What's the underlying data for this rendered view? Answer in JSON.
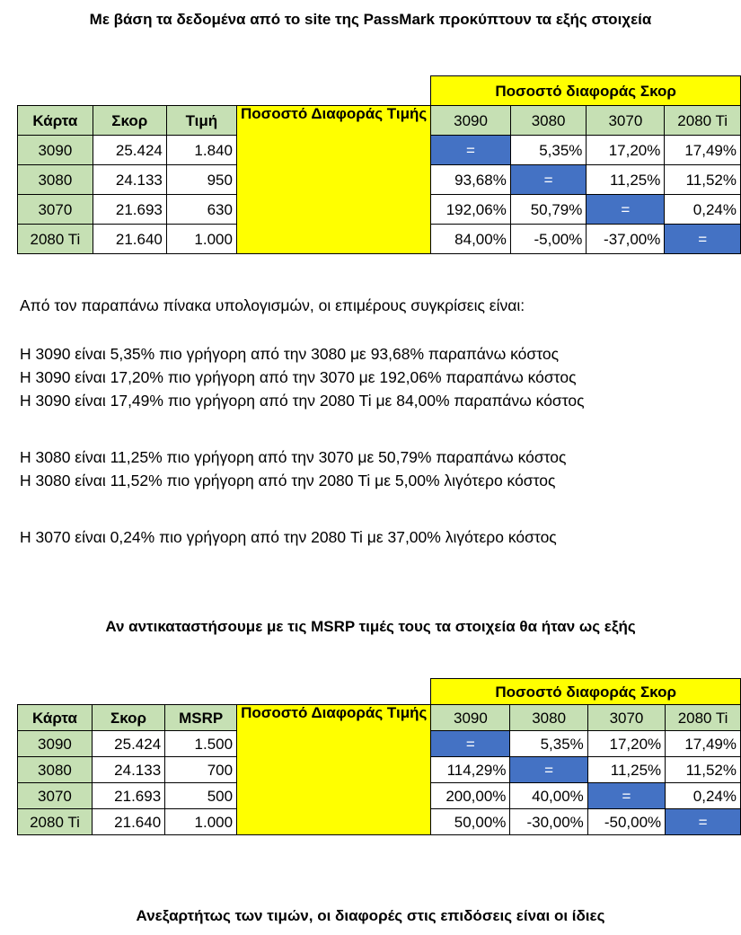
{
  "heading1": "Με βάση τα δεδομένα από το site της PassMark προκύπτουν τα εξής στοιχεία",
  "heading2": "Αν αντικαταστήσουμε με τις MSRP τιμές τους τα στοιχεία θα ήταν ως εξής",
  "heading3": "Ανεξαρτήτως των τιμών, οι διαφορές στις επιδόσεις είναι οι ίδιες",
  "table1": {
    "score_diff_title": "Ποσοστό διαφοράς Σκορ",
    "headers": [
      "Κάρτα",
      "Σκορ",
      "Τιμή"
    ],
    "diff_headers": [
      "3090",
      "3080",
      "3070",
      "2080 Ti"
    ],
    "price_diff_label": "Ποσοστό Διαφοράς Τιμής",
    "rows": [
      {
        "card": "3090",
        "score": "25.424",
        "price": "1.840",
        "diffs": [
          "=",
          "5,35%",
          "17,20%",
          "17,49%"
        ]
      },
      {
        "card": "3080",
        "score": "24.133",
        "price": "950",
        "diffs": [
          "93,68%",
          "=",
          "11,25%",
          "11,52%"
        ]
      },
      {
        "card": "3070",
        "score": "21.693",
        "price": "630",
        "diffs": [
          "192,06%",
          "50,79%",
          "=",
          "0,24%"
        ]
      },
      {
        "card": "2080 Ti",
        "score": "21.640",
        "price": "1.000",
        "diffs": [
          "84,00%",
          "-5,00%",
          "-37,00%",
          "="
        ]
      }
    ]
  },
  "table2": {
    "score_diff_title": "Ποσοστό διαφοράς Σκορ",
    "headers": [
      "Κάρτα",
      "Σκορ",
      "MSRP"
    ],
    "diff_headers": [
      "3090",
      "3080",
      "3070",
      "2080 Ti"
    ],
    "price_diff_label": "Ποσοστό Διαφοράς Τιμής",
    "rows": [
      {
        "card": "3090",
        "score": "25.424",
        "price": "1.500",
        "diffs": [
          "=",
          "5,35%",
          "17,20%",
          "17,49%"
        ]
      },
      {
        "card": "3080",
        "score": "24.133",
        "price": "700",
        "diffs": [
          "114,29%",
          "=",
          "11,25%",
          "11,52%"
        ]
      },
      {
        "card": "3070",
        "score": "21.693",
        "price": "500",
        "diffs": [
          "200,00%",
          "40,00%",
          "=",
          "0,24%"
        ]
      },
      {
        "card": "2080 Ti",
        "score": "21.640",
        "price": "1.000",
        "diffs": [
          "50,00%",
          "-30,00%",
          "-50,00%",
          "="
        ]
      }
    ]
  },
  "intro": "Από τον παραπάνω πίνακα υπολογισμών, οι επιμέρους συγκρίσεις είναι:",
  "comparisons": [
    "Η 3090 είναι 5,35% πιο γρήγορη από την 3080 με 93,68% παραπάνω κόστος",
    "Η 3090 είναι 17,20% πιο γρήγορη από την 3070 με 192,06% παραπάνω κόστος",
    "Η 3090 είναι 17,49% πιο γρήγορη από την 2080 Ti με 84,00% παραπάνω κόστος",
    "Η 3080 είναι 11,25% πιο γρήγορη από την 3070 με 50,79% παραπάνω κόστος",
    "Η 3080 είναι 11,52% πιο γρήγορη από την 2080 Ti με 5,00% λιγότερο κόστος",
    "Η 3070 είναι 0,24% πιο γρήγορη από την 2080 Ti με 37,00% λιγότερο κόστος"
  ],
  "colors": {
    "green": "#c6e0b4",
    "yellow": "#ffff00",
    "blue": "#4472c4"
  }
}
